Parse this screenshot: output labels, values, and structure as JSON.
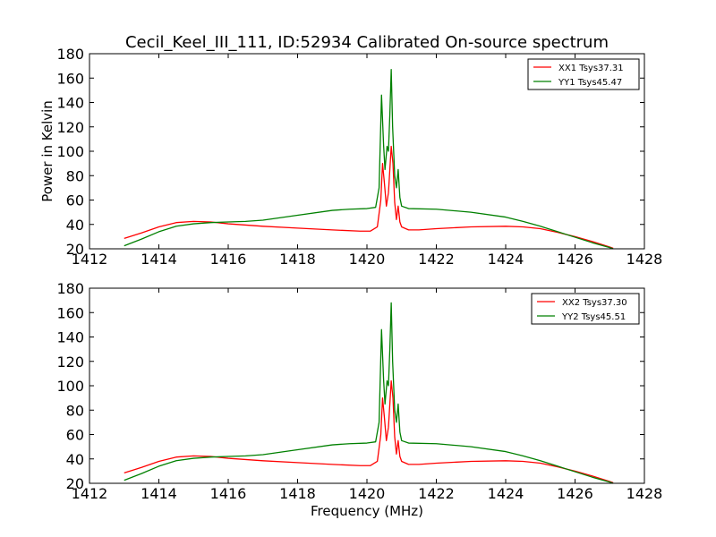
{
  "chart_data": [
    {
      "type": "line",
      "title": "Cecil_Keel_III_111, ID:52934 Calibrated On-source spectrum",
      "xlabel": "",
      "ylabel": "Power in Kelvin",
      "xlim": [
        1412,
        1428
      ],
      "ylim": [
        20,
        180
      ],
      "xticks": [
        1412,
        1414,
        1416,
        1418,
        1420,
        1422,
        1424,
        1426,
        1428
      ],
      "yticks": [
        20,
        40,
        60,
        80,
        100,
        120,
        140,
        160,
        180
      ],
      "grid": false,
      "legend_position": "top-right",
      "series": [
        {
          "name": "XX1 Tsys37.31",
          "color": "#ff0000",
          "points": [
            [
              1413.0,
              28.5
            ],
            [
              1413.5,
              33
            ],
            [
              1414.0,
              38
            ],
            [
              1414.5,
              41.5
            ],
            [
              1415.0,
              42.5
            ],
            [
              1415.5,
              42
            ],
            [
              1416.0,
              40.5
            ],
            [
              1417.0,
              38.5
            ],
            [
              1418.0,
              37
            ],
            [
              1419.0,
              35.5
            ],
            [
              1419.8,
              34.5
            ],
            [
              1420.1,
              34.5
            ],
            [
              1420.3,
              38
            ],
            [
              1420.4,
              60
            ],
            [
              1420.45,
              90
            ],
            [
              1420.5,
              75
            ],
            [
              1420.56,
              55
            ],
            [
              1420.62,
              66
            ],
            [
              1420.66,
              85
            ],
            [
              1420.7,
              104
            ],
            [
              1420.75,
              90
            ],
            [
              1420.8,
              58
            ],
            [
              1420.85,
              44
            ],
            [
              1420.9,
              55
            ],
            [
              1420.95,
              42
            ],
            [
              1421.0,
              38
            ],
            [
              1421.2,
              35.5
            ],
            [
              1421.5,
              35.5
            ],
            [
              1422.0,
              36.5
            ],
            [
              1423.0,
              38
            ],
            [
              1424.0,
              38.5
            ],
            [
              1424.5,
              38
            ],
            [
              1425.0,
              36.5
            ],
            [
              1425.5,
              33.5
            ],
            [
              1426.0,
              30
            ],
            [
              1426.5,
              26
            ],
            [
              1427.0,
              21.5
            ],
            [
              1427.1,
              20.5
            ]
          ]
        },
        {
          "name": "YY1 Tsys45.47",
          "color": "#008000",
          "points": [
            [
              1413.0,
              22.5
            ],
            [
              1413.5,
              28
            ],
            [
              1414.0,
              34
            ],
            [
              1414.5,
              38.5
            ],
            [
              1415.0,
              40.5
            ],
            [
              1415.5,
              41.5
            ],
            [
              1416.0,
              42
            ],
            [
              1416.5,
              42.5
            ],
            [
              1417.0,
              43.5
            ],
            [
              1418.0,
              47.5
            ],
            [
              1419.0,
              51.5
            ],
            [
              1419.5,
              52.5
            ],
            [
              1420.0,
              53
            ],
            [
              1420.25,
              54
            ],
            [
              1420.35,
              70
            ],
            [
              1420.42,
              146
            ],
            [
              1420.48,
              105
            ],
            [
              1420.52,
              85
            ],
            [
              1420.58,
              104
            ],
            [
              1420.62,
              100
            ],
            [
              1420.66,
              130
            ],
            [
              1420.7,
              167
            ],
            [
              1420.74,
              120
            ],
            [
              1420.8,
              80
            ],
            [
              1420.85,
              70
            ],
            [
              1420.9,
              85
            ],
            [
              1420.95,
              62
            ],
            [
              1421.0,
              55
            ],
            [
              1421.2,
              53
            ],
            [
              1422.0,
              52.5
            ],
            [
              1423.0,
              50
            ],
            [
              1424.0,
              46
            ],
            [
              1424.5,
              42.5
            ],
            [
              1425.0,
              38.5
            ],
            [
              1425.5,
              34
            ],
            [
              1426.0,
              29.5
            ],
            [
              1426.5,
              25
            ],
            [
              1427.0,
              21
            ],
            [
              1427.1,
              20
            ]
          ]
        }
      ]
    },
    {
      "type": "line",
      "title": "",
      "xlabel": "Frequency (MHz)",
      "ylabel": "",
      "xlim": [
        1412,
        1428
      ],
      "ylim": [
        20,
        180
      ],
      "xticks": [
        1412,
        1414,
        1416,
        1418,
        1420,
        1422,
        1424,
        1426,
        1428
      ],
      "yticks": [
        20,
        40,
        60,
        80,
        100,
        120,
        140,
        160,
        180
      ],
      "grid": false,
      "legend_position": "top-right",
      "series": [
        {
          "name": "XX2 Tsys37.30",
          "color": "#ff0000",
          "points": [
            [
              1413.0,
              28.5
            ],
            [
              1413.5,
              33
            ],
            [
              1414.0,
              38
            ],
            [
              1414.5,
              41.5
            ],
            [
              1415.0,
              42.5
            ],
            [
              1415.5,
              42
            ],
            [
              1416.0,
              40.5
            ],
            [
              1417.0,
              38.5
            ],
            [
              1418.0,
              37
            ],
            [
              1419.0,
              35.5
            ],
            [
              1419.8,
              34.5
            ],
            [
              1420.1,
              34.5
            ],
            [
              1420.3,
              38
            ],
            [
              1420.4,
              60
            ],
            [
              1420.45,
              90
            ],
            [
              1420.5,
              75
            ],
            [
              1420.56,
              55
            ],
            [
              1420.62,
              66
            ],
            [
              1420.66,
              85
            ],
            [
              1420.7,
              104
            ],
            [
              1420.75,
              90
            ],
            [
              1420.8,
              58
            ],
            [
              1420.85,
              44
            ],
            [
              1420.9,
              55
            ],
            [
              1420.95,
              42
            ],
            [
              1421.0,
              38
            ],
            [
              1421.2,
              35.5
            ],
            [
              1421.5,
              35.5
            ],
            [
              1422.0,
              36.5
            ],
            [
              1423.0,
              38
            ],
            [
              1424.0,
              38.5
            ],
            [
              1424.5,
              38
            ],
            [
              1425.0,
              36.5
            ],
            [
              1425.5,
              33.5
            ],
            [
              1426.0,
              30
            ],
            [
              1426.5,
              26
            ],
            [
              1427.0,
              21.5
            ],
            [
              1427.1,
              20.5
            ]
          ]
        },
        {
          "name": "YY2 Tsys45.51",
          "color": "#008000",
          "points": [
            [
              1413.0,
              22.5
            ],
            [
              1413.5,
              28
            ],
            [
              1414.0,
              34
            ],
            [
              1414.5,
              38.5
            ],
            [
              1415.0,
              40.5
            ],
            [
              1415.5,
              41.5
            ],
            [
              1416.0,
              42
            ],
            [
              1416.5,
              42.5
            ],
            [
              1417.0,
              43.5
            ],
            [
              1418.0,
              47.5
            ],
            [
              1419.0,
              51.5
            ],
            [
              1419.5,
              52.5
            ],
            [
              1420.0,
              53
            ],
            [
              1420.25,
              54
            ],
            [
              1420.35,
              70
            ],
            [
              1420.42,
              146
            ],
            [
              1420.48,
              105
            ],
            [
              1420.52,
              85
            ],
            [
              1420.58,
              104
            ],
            [
              1420.62,
              100
            ],
            [
              1420.66,
              130
            ],
            [
              1420.7,
              168
            ],
            [
              1420.74,
              120
            ],
            [
              1420.8,
              80
            ],
            [
              1420.85,
              70
            ],
            [
              1420.9,
              85
            ],
            [
              1420.95,
              62
            ],
            [
              1421.0,
              55
            ],
            [
              1421.2,
              53
            ],
            [
              1422.0,
              52.5
            ],
            [
              1423.0,
              50
            ],
            [
              1424.0,
              46
            ],
            [
              1424.5,
              42.5
            ],
            [
              1425.0,
              38.5
            ],
            [
              1425.5,
              34
            ],
            [
              1426.0,
              29.5
            ],
            [
              1426.5,
              25
            ],
            [
              1427.0,
              21
            ],
            [
              1427.1,
              20
            ]
          ]
        }
      ]
    }
  ]
}
